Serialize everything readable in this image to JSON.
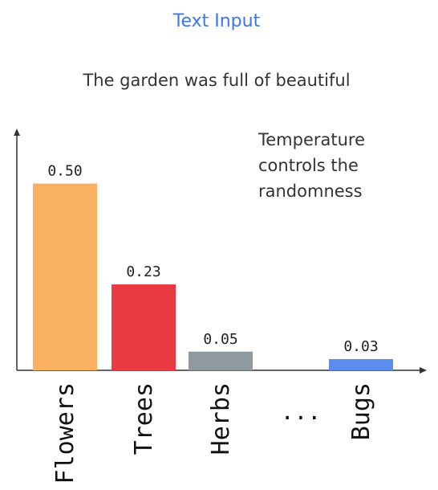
{
  "header": {
    "title": "Text Input"
  },
  "prompt": {
    "sentence": "The garden was full of beautiful"
  },
  "annotation": {
    "lines": [
      "Temperature",
      "controls the",
      "randomness"
    ]
  },
  "colors": {
    "header": "#3a78e6",
    "axis": "#333333",
    "text": "#333333"
  },
  "chart_data": {
    "type": "bar",
    "categories": [
      "Flowers",
      "Trees",
      "Herbs",
      "...",
      "Bugs"
    ],
    "values": [
      0.5,
      0.23,
      0.05,
      null,
      0.03
    ],
    "value_labels": [
      "0.50",
      "0.23",
      "0.05",
      "",
      "0.03"
    ],
    "colors": [
      "#f9b060",
      "#ea3a44",
      "#8f9aa0",
      "",
      "#5b8def"
    ],
    "ellipsis": "...",
    "title": "",
    "xlabel": "",
    "ylabel": "",
    "ylim": [
      0,
      0.6
    ],
    "grid": false,
    "tick_labels_rotation": "vertical"
  }
}
